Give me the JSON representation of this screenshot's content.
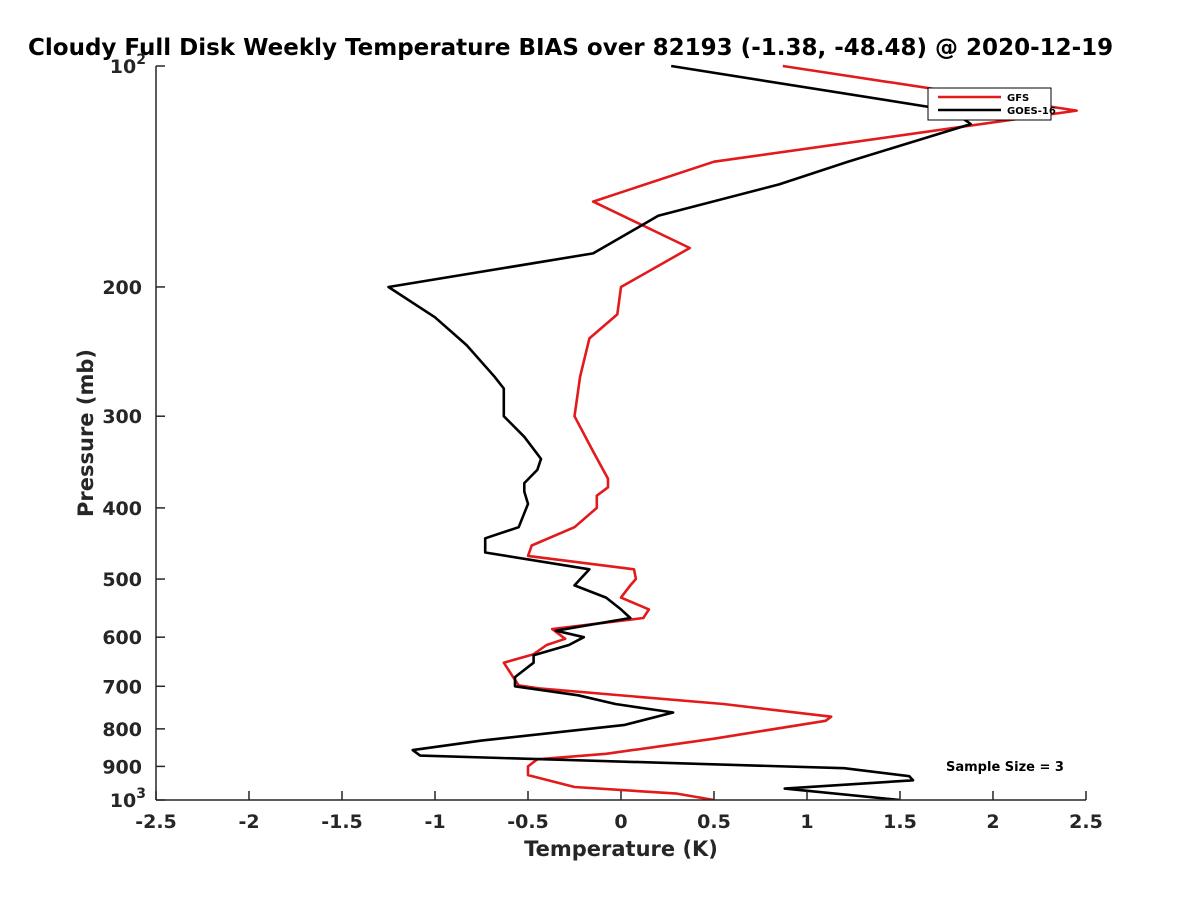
{
  "chart_data": {
    "type": "line",
    "title": "Cloudy Full Disk Weekly Temperature BIAS over 82193 (-1.38, -48.48) @ 2020-12-19",
    "xlabel": "Temperature (K)",
    "ylabel": "Pressure (mb)",
    "xlim": [
      -2.5,
      2.5
    ],
    "ylim": [
      100,
      1000
    ],
    "y_scale": "log",
    "y_reversed": true,
    "x_ticks": [
      "-2.5",
      "-2",
      "-1.5",
      "-1",
      "-0.5",
      "0",
      "0.5",
      "1",
      "1.5",
      "2",
      "2.5"
    ],
    "y_ticks": [
      {
        "value": 100,
        "base": "10",
        "exp": "2"
      },
      {
        "value": 200,
        "label": "200"
      },
      {
        "value": 300,
        "label": "300"
      },
      {
        "value": 400,
        "label": "400"
      },
      {
        "value": 500,
        "label": "500"
      },
      {
        "value": 600,
        "label": "600"
      },
      {
        "value": 700,
        "label": "700"
      },
      {
        "value": 800,
        "label": "800"
      },
      {
        "value": 900,
        "label": "900"
      },
      {
        "value": 1000,
        "base": "10",
        "exp": "3"
      }
    ],
    "grid": false,
    "legend_position": "top-right",
    "annotation": "Sample Size = 3",
    "series": [
      {
        "name": "GFS",
        "color": "#e31a1c",
        "points": [
          [
            0.87,
            100
          ],
          [
            2.45,
            115
          ],
          [
            0.5,
            135
          ],
          [
            -0.15,
            153
          ],
          [
            0.37,
            177
          ],
          [
            0.0,
            200
          ],
          [
            -0.02,
            218
          ],
          [
            -0.17,
            235
          ],
          [
            -0.22,
            265
          ],
          [
            -0.25,
            300
          ],
          [
            -0.15,
            335
          ],
          [
            -0.07,
            365
          ],
          [
            -0.07,
            375
          ],
          [
            -0.13,
            385
          ],
          [
            -0.13,
            400
          ],
          [
            -0.25,
            425
          ],
          [
            -0.48,
            450
          ],
          [
            -0.5,
            465
          ],
          [
            0.07,
            485
          ],
          [
            0.08,
            500
          ],
          [
            0.05,
            510
          ],
          [
            0.0,
            530
          ],
          [
            0.15,
            550
          ],
          [
            0.12,
            565
          ],
          [
            -0.37,
            585
          ],
          [
            -0.3,
            603
          ],
          [
            -0.4,
            615
          ],
          [
            -0.47,
            633
          ],
          [
            -0.63,
            650
          ],
          [
            -0.58,
            680
          ],
          [
            -0.55,
            698
          ],
          [
            -0.43,
            705
          ],
          [
            0.55,
            740
          ],
          [
            1.13,
            770
          ],
          [
            1.1,
            780
          ],
          [
            0.5,
            825
          ],
          [
            -0.08,
            865
          ],
          [
            -0.45,
            880
          ],
          [
            -0.5,
            900
          ],
          [
            -0.5,
            925
          ],
          [
            -0.25,
            960
          ],
          [
            0.3,
            980
          ],
          [
            0.5,
            1000
          ]
        ]
      },
      {
        "name": "GOES-16",
        "color": "#000000",
        "points": [
          [
            0.27,
            100
          ],
          [
            1.78,
            115
          ],
          [
            1.88,
            120
          ],
          [
            1.22,
            135
          ],
          [
            0.85,
            145
          ],
          [
            0.2,
            160
          ],
          [
            -0.15,
            180
          ],
          [
            -1.25,
            200
          ],
          [
            -1.0,
            220
          ],
          [
            -0.83,
            240
          ],
          [
            -0.68,
            265
          ],
          [
            -0.63,
            275
          ],
          [
            -0.63,
            300
          ],
          [
            -0.52,
            320
          ],
          [
            -0.43,
            343
          ],
          [
            -0.45,
            355
          ],
          [
            -0.52,
            370
          ],
          [
            -0.52,
            380
          ],
          [
            -0.5,
            395
          ],
          [
            -0.55,
            425
          ],
          [
            -0.73,
            440
          ],
          [
            -0.73,
            460
          ],
          [
            -0.17,
            485
          ],
          [
            -0.25,
            510
          ],
          [
            -0.08,
            530
          ],
          [
            0.0,
            550
          ],
          [
            0.05,
            565
          ],
          [
            -0.35,
            588
          ],
          [
            -0.2,
            600
          ],
          [
            -0.28,
            615
          ],
          [
            -0.47,
            635
          ],
          [
            -0.47,
            650
          ],
          [
            -0.57,
            680
          ],
          [
            -0.57,
            700
          ],
          [
            -0.23,
            720
          ],
          [
            -0.03,
            740
          ],
          [
            0.28,
            760
          ],
          [
            0.02,
            790
          ],
          [
            -0.75,
            830
          ],
          [
            -1.12,
            855
          ],
          [
            -1.08,
            870
          ],
          [
            1.2,
            905
          ],
          [
            1.55,
            928
          ],
          [
            1.57,
            940
          ],
          [
            0.88,
            965
          ],
          [
            1.5,
            1000
          ]
        ]
      }
    ]
  }
}
